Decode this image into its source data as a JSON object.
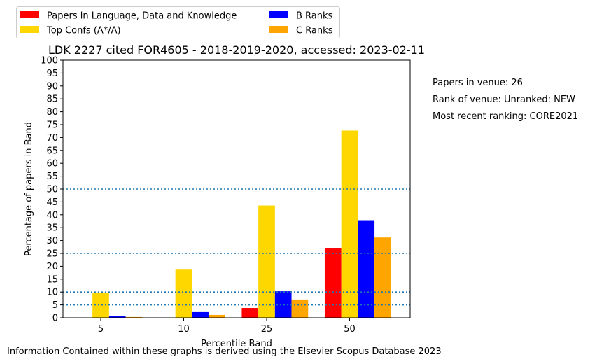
{
  "side_notes": {
    "papers_in_venue": "Papers in venue: 26",
    "rank_of_venue": "Rank of venue: Unranked: NEW",
    "recent_ranking": "Most recent ranking: CORE2021"
  },
  "footer": "Information Contained within these graphs is derived using the Elsevier Scopus Database 2023",
  "chart_data": {
    "type": "bar",
    "title": "LDK 2227 cited FOR4605 - 2018-2019-2020, accessed: 2023-02-11",
    "xlabel": "Percentile Band",
    "ylabel": "Percentage of papers in Band",
    "categories": [
      "5",
      "10",
      "25",
      "50"
    ],
    "ylim": [
      0,
      100
    ],
    "yticks": [
      0,
      5,
      10,
      15,
      20,
      25,
      30,
      35,
      40,
      45,
      50,
      55,
      60,
      65,
      70,
      75,
      80,
      85,
      90,
      95,
      100
    ],
    "reference_lines": [
      5,
      10,
      25,
      50
    ],
    "reference_line_color": "#1f77b4",
    "legend_placement": "above plot, top-left, two columns",
    "series": [
      {
        "name": "Papers in Language, Data and Knowledge",
        "color": "#ff0000",
        "values": [
          0,
          0,
          3.8,
          26.9
        ]
      },
      {
        "name": "Top Confs (A*/A)",
        "color": "#ffd700",
        "values": [
          9.8,
          18.7,
          43.6,
          72.7
        ]
      },
      {
        "name": "B Ranks",
        "color": "#0000ff",
        "values": [
          0.8,
          2.2,
          10.3,
          37.9
        ]
      },
      {
        "name": "C Ranks",
        "color": "#ffa500",
        "values": [
          0.3,
          1.1,
          7.1,
          31.2
        ]
      }
    ]
  }
}
